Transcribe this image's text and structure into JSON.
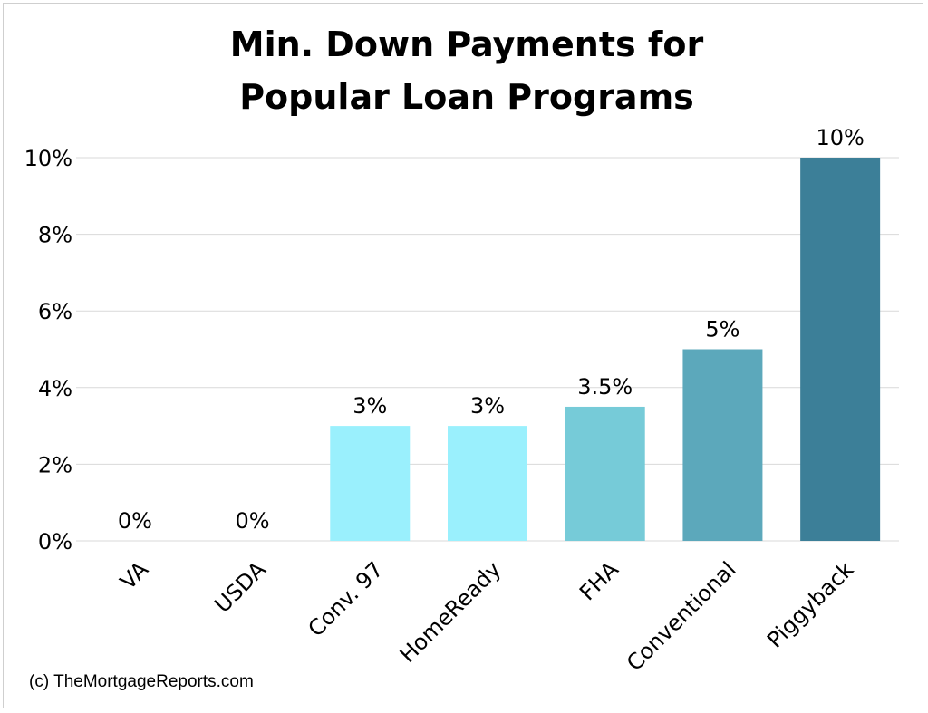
{
  "chart_data": {
    "type": "bar",
    "title_lines": [
      "Min. Down Payments for",
      "Popular Loan Programs"
    ],
    "categories": [
      "VA",
      "USDA",
      "Conv. 97",
      "HomeReady",
      "FHA",
      "Conventional",
      "Piggyback"
    ],
    "values": [
      0,
      0,
      3,
      3,
      3.5,
      5,
      10
    ],
    "value_labels": [
      "0%",
      "0%",
      "3%",
      "3%",
      "3.5%",
      "5%",
      "10%"
    ],
    "bar_colors": [
      "#9af0fd",
      "#9af0fd",
      "#9af0fd",
      "#9af0fd",
      "#76cbd8",
      "#5ca8bb",
      "#3c7f98"
    ],
    "y_ticks": [
      0,
      2,
      4,
      6,
      8,
      10
    ],
    "y_tick_labels": [
      "0%",
      "2%",
      "4%",
      "6%",
      "8%",
      "10%"
    ],
    "ylim": [
      0,
      10
    ],
    "grid": true,
    "legend": "none",
    "xlabel": "",
    "ylabel": ""
  },
  "credit": "(c) TheMortgageReports.com"
}
